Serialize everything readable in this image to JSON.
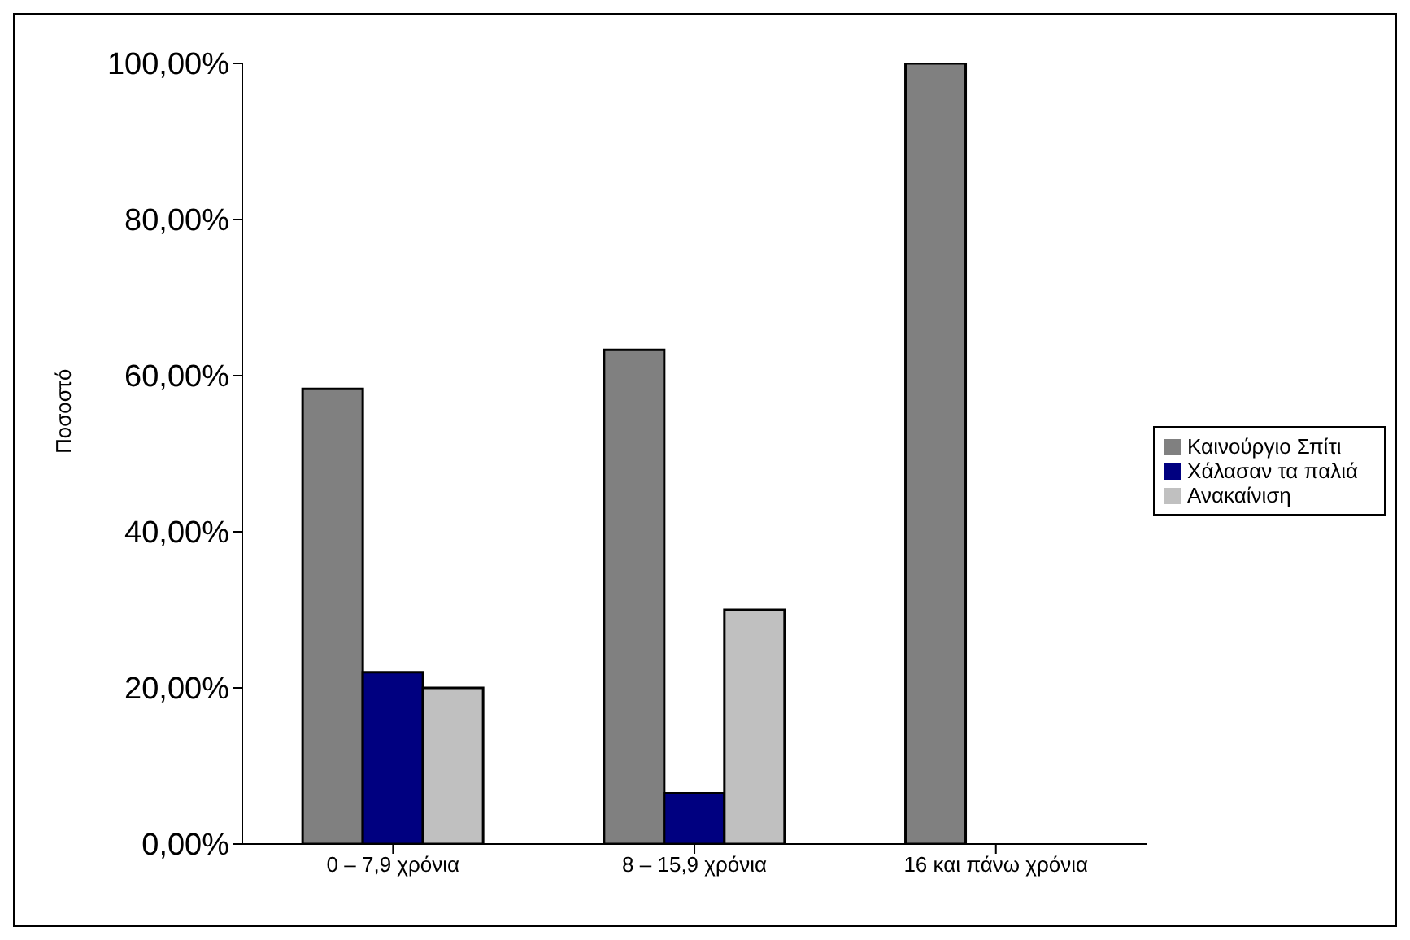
{
  "chart_data": {
    "type": "bar",
    "ylabel": "Ποσοστό",
    "categories": [
      "0 – 7,9 χρόνια",
      "8 – 15,9 χρόνια",
      "16 και πάνω χρόνια"
    ],
    "series": [
      {
        "name": "Καινούργιο Σπίτι",
        "color": "#808080",
        "values": [
          58.3,
          63.3,
          100
        ]
      },
      {
        "name": "Χάλασαν τα παλιά",
        "color": "#000080",
        "values": [
          22,
          6.5,
          null
        ]
      },
      {
        "name": "Ανακαίνιση",
        "color": "#c0c0c0",
        "values": [
          20,
          30,
          null
        ]
      }
    ],
    "ylim": [
      0,
      100
    ],
    "yticks": [
      {
        "value": 0,
        "label": "0,00%"
      },
      {
        "value": 20,
        "label": "20,00%"
      },
      {
        "value": 40,
        "label": "40,00%"
      },
      {
        "value": 60,
        "label": "60,00%"
      },
      {
        "value": 80,
        "label": "80,00%"
      },
      {
        "value": 100,
        "label": "100,00%"
      }
    ],
    "grid": false,
    "legend": "right"
  }
}
